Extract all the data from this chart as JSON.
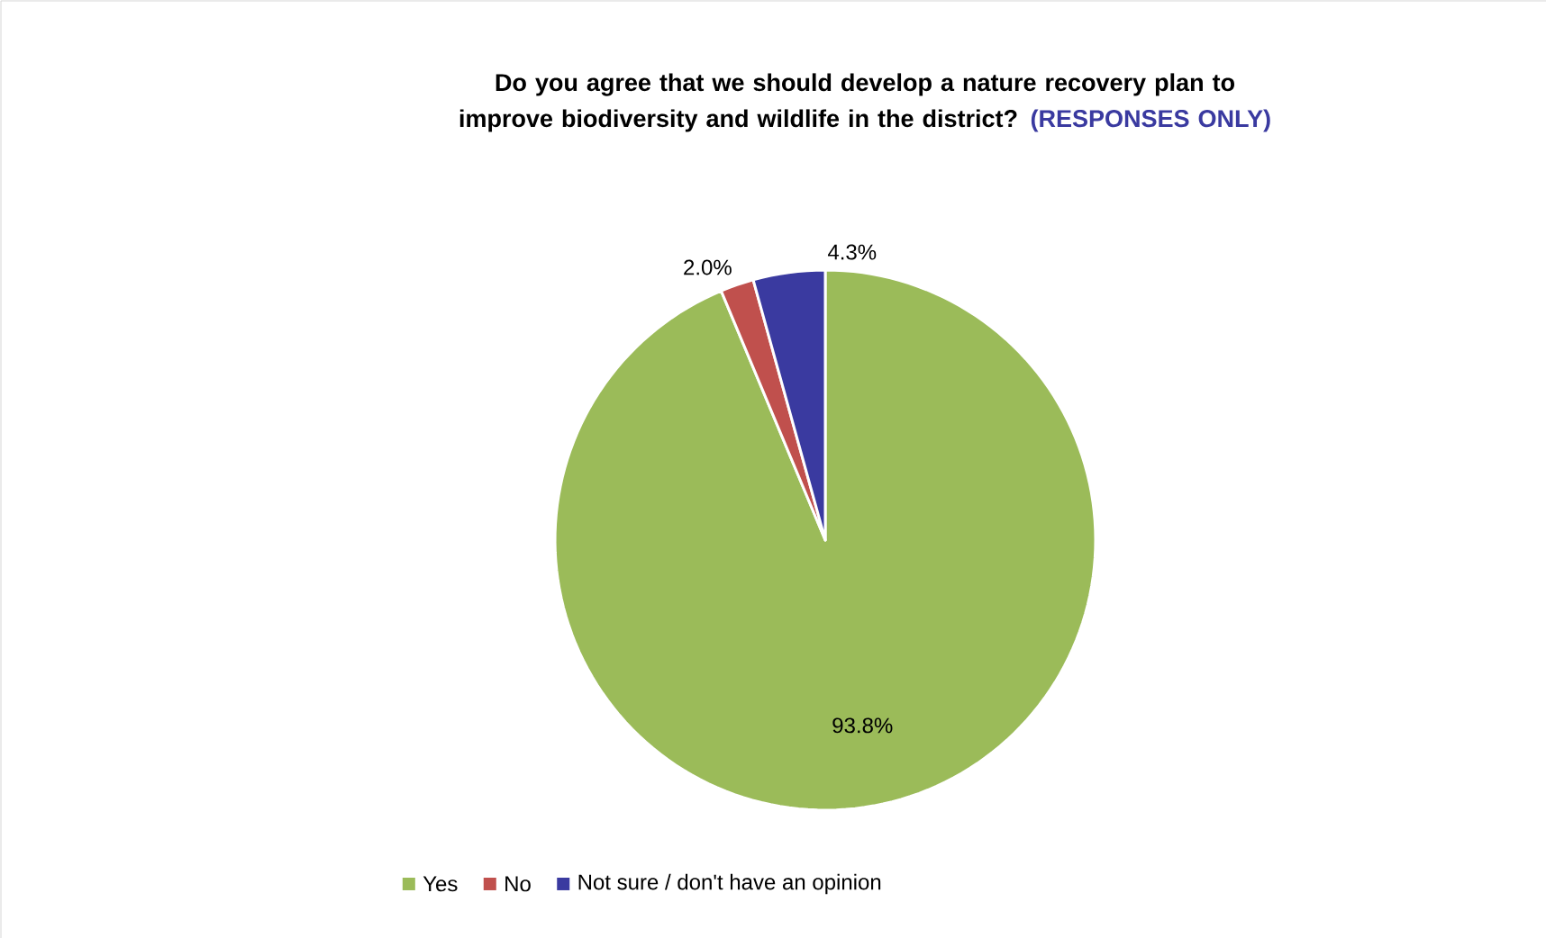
{
  "chart_data": {
    "type": "pie",
    "title": "Do you agree that we should develop a nature recovery plan to improve biodiversity and wildlife in the district?",
    "subtitle": "(RESPONSES ONLY)",
    "categories": [
      "Yes",
      "No",
      "Not sure / don't have an opinion"
    ],
    "values": [
      93.8,
      2.0,
      4.3
    ],
    "colors": [
      "#9bbb59",
      "#c0504d",
      "#3a3aa0"
    ],
    "value_labels": [
      "93.8%",
      "2.0%",
      "4.3%"
    ],
    "legend": "bottom"
  }
}
